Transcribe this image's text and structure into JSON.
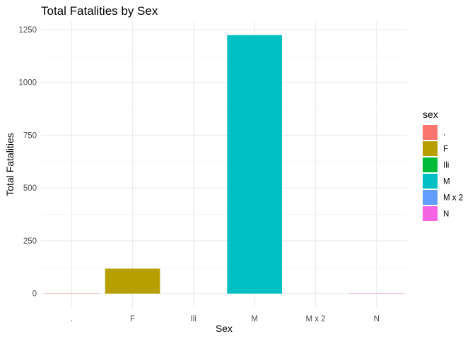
{
  "chart_data": {
    "type": "bar",
    "title": "Total Fatalities by Sex",
    "xlabel": "Sex",
    "ylabel": "Total Fatalities",
    "categories": [
      ".",
      "F",
      "Ili",
      "M",
      "M x 2",
      "N"
    ],
    "values": [
      1,
      118,
      0,
      1224,
      0,
      1
    ],
    "ylim": [
      -68,
      1290
    ],
    "yticks": [
      0,
      250,
      500,
      750,
      1000,
      1250
    ],
    "grid": true,
    "legend": {
      "title": "sex",
      "position": "right",
      "entries": [
        ".",
        "F",
        "Ili",
        "M",
        "M x 2",
        "N"
      ]
    },
    "colors": [
      "#F8766D",
      "#B79F00",
      "#00BA38",
      "#00BFC4",
      "#619CFF",
      "#F564E3"
    ]
  }
}
